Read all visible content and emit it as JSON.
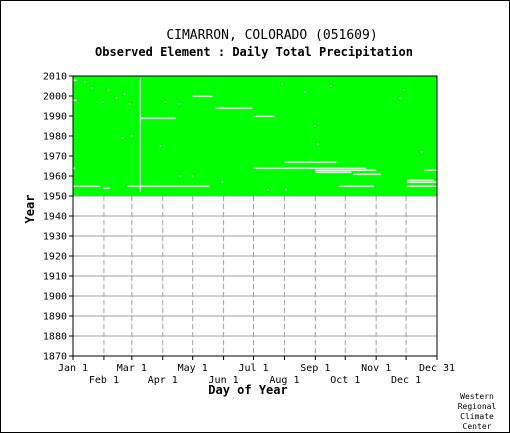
{
  "chart_data": {
    "type": "heatmap",
    "title": "CIMARRON, COLORADO   (051609)",
    "subtitle": "Observed Element : Daily Total Precipitation",
    "xlabel": "Day of Year",
    "ylabel": "Year",
    "credit": [
      "Western",
      "Regional",
      "Climate",
      "Center"
    ],
    "ylim": [
      1870,
      2010
    ],
    "y_ticks": [
      1870,
      1880,
      1890,
      1900,
      1910,
      1920,
      1930,
      1940,
      1950,
      1960,
      1970,
      1980,
      1990,
      2000,
      2010
    ],
    "xlim": [
      1,
      366
    ],
    "x_ticks_upper": [
      {
        "label": "Jan 1",
        "day": 1
      },
      {
        "label": "Mar 1",
        "day": 60
      },
      {
        "label": "May 1",
        "day": 121
      },
      {
        "label": "Jul 1",
        "day": 182
      },
      {
        "label": "Sep 1",
        "day": 244
      },
      {
        "label": "Nov 1",
        "day": 305
      },
      {
        "label": "Dec 31",
        "day": 366
      }
    ],
    "x_ticks_lower": [
      {
        "label": "Feb 1",
        "day": 32
      },
      {
        "label": "Apr 1",
        "day": 91
      },
      {
        "label": "Jun 1",
        "day": 152
      },
      {
        "label": "Aug 1",
        "day": 213
      },
      {
        "label": "Oct 1",
        "day": 274
      },
      {
        "label": "Dec 1",
        "day": 335
      }
    ],
    "grid": true,
    "legend": "none",
    "observed_color": "#00ff00",
    "observed_period": {
      "start_year": 1951,
      "end_year": 2010,
      "start_day": 1,
      "end_day": 366
    },
    "missing_segments": [
      {
        "year": 1955,
        "start_day": 1,
        "end_day": 28
      },
      {
        "year": 1955,
        "start_day": 55,
        "end_day": 138
      },
      {
        "year": 1954,
        "start_day": 31,
        "end_day": 38
      },
      {
        "year": 1955,
        "start_day": 268,
        "end_day": 303
      },
      {
        "year": 1955,
        "start_day": 336,
        "end_day": 366
      },
      {
        "year": 1957,
        "start_day": 336,
        "end_day": 366
      },
      {
        "year": 1958,
        "start_day": 336,
        "end_day": 363
      },
      {
        "year": 1961,
        "start_day": 282,
        "end_day": 310
      },
      {
        "year": 1962,
        "start_day": 244,
        "end_day": 280
      },
      {
        "year": 1963,
        "start_day": 244,
        "end_day": 305
      },
      {
        "year": 1963,
        "start_day": 353,
        "end_day": 366
      },
      {
        "year": 1964,
        "start_day": 182,
        "end_day": 295
      },
      {
        "year": 1964,
        "start_day": 1,
        "end_day": 3
      },
      {
        "year": 1967,
        "start_day": 213,
        "end_day": 265
      },
      {
        "year": 1990,
        "start_day": 182,
        "end_day": 203
      },
      {
        "year": 1994,
        "start_day": 144,
        "end_day": 181
      },
      {
        "year": 1989,
        "start_day": 69,
        "end_day": 104
      },
      {
        "year": 2000,
        "start_day": 121,
        "end_day": 141
      },
      {
        "year": 1998,
        "start_day": 1,
        "end_day": 5
      },
      {
        "year": 2008,
        "start_day": 1,
        "end_day": 5
      }
    ],
    "missing_vertical": [
      {
        "day": 68,
        "start_year": 1952,
        "end_year": 2009
      }
    ],
    "missing_days": [
      {
        "year": 2007,
        "day": 12
      },
      {
        "year": 2004,
        "day": 19
      },
      {
        "year": 2003,
        "day": 36
      },
      {
        "year": 2001,
        "day": 52
      },
      {
        "year": 1999,
        "day": 44
      },
      {
        "year": 1997,
        "day": 30
      },
      {
        "year": 1996,
        "day": 57
      },
      {
        "year": 1980,
        "day": 59
      },
      {
        "year": 1979,
        "day": 50
      },
      {
        "year": 1975,
        "day": 88
      },
      {
        "year": 1960,
        "day": 120
      },
      {
        "year": 1960,
        "day": 108
      },
      {
        "year": 1957,
        "day": 150
      },
      {
        "year": 2002,
        "day": 233
      },
      {
        "year": 2005,
        "day": 259
      },
      {
        "year": 2006,
        "day": 210
      },
      {
        "year": 1999,
        "day": 328
      },
      {
        "year": 2003,
        "day": 332
      },
      {
        "year": 1985,
        "day": 243
      },
      {
        "year": 1972,
        "day": 350
      },
      {
        "year": 1976,
        "day": 246
      },
      {
        "year": 1953,
        "day": 214
      },
      {
        "year": 1953,
        "day": 196
      },
      {
        "year": 1997,
        "day": 93
      },
      {
        "year": 1996,
        "day": 107
      }
    ]
  }
}
